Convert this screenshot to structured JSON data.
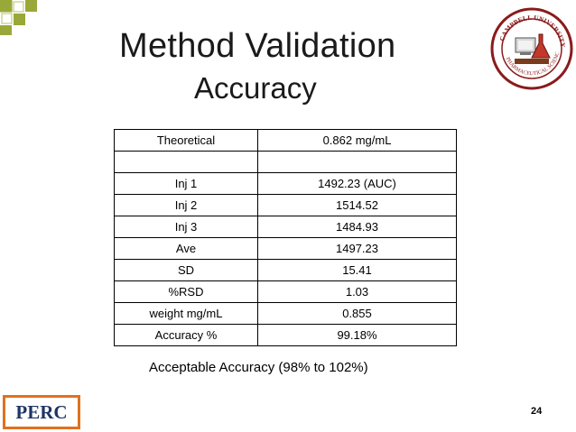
{
  "slide": {
    "title": "Method Validation",
    "subtitle": "Accuracy",
    "page_number": "24"
  },
  "table": {
    "rows": [
      [
        "Theoretical",
        "0.862 mg/mL"
      ],
      [
        "",
        ""
      ],
      [
        "Inj 1",
        "1492.23 (AUC)"
      ],
      [
        "Inj 2",
        "1514.52"
      ],
      [
        "Inj 3",
        "1484.93"
      ],
      [
        "Ave",
        "1497.23"
      ],
      [
        "SD",
        "15.41"
      ],
      [
        "%RSD",
        "1.03"
      ],
      [
        "weight mg/mL",
        "0.855"
      ],
      [
        "Accuracy %",
        "99.18%"
      ]
    ]
  },
  "note": "Acceptable Accuracy (98% to 102%)",
  "logo": {
    "text": "PERC",
    "seal_lettering": "CAMPBELL UNIVERSITY PHARMACEUTICAL SCIENCES",
    "icon": "university-seal-icon"
  },
  "colors": {
    "checker": "#9aa83a",
    "accent_orange": "#e0711f",
    "perc_text": "#1f3566",
    "seal": "#8b1a1a"
  }
}
